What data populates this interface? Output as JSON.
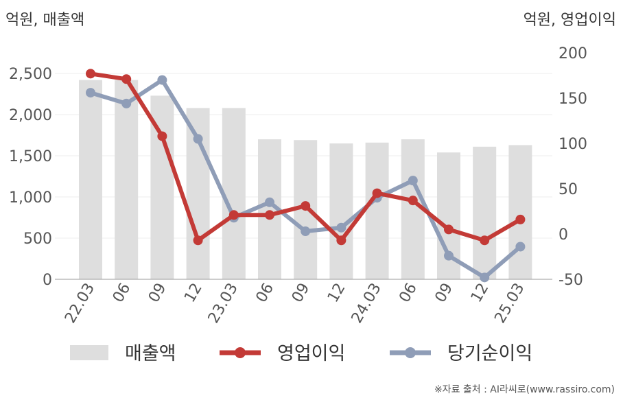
{
  "chart_data": {
    "type": "bar",
    "left_axis_title": "억원, 매출액",
    "right_axis_title": "억원, 영업이익",
    "categories": [
      "22.03",
      "06",
      "09",
      "12",
      "23.03",
      "06",
      "09",
      "12",
      "24.03",
      "06",
      "09",
      "12",
      "25.03"
    ],
    "y_left": {
      "min": 0,
      "max": 2500,
      "ticks": [
        "0",
        "500",
        "1,000",
        "1,500",
        "2,000",
        "2,500"
      ]
    },
    "y_right": {
      "min": -50,
      "max": 200,
      "ticks": [
        "-50",
        "0",
        "50",
        "100",
        "150",
        "200"
      ]
    },
    "series": [
      {
        "name": "매출액",
        "type": "bar",
        "axis": "left",
        "color": "#dedede",
        "values": [
          2420,
          2420,
          2230,
          2080,
          2080,
          1700,
          1690,
          1650,
          1660,
          1700,
          1540,
          1610,
          1630
        ]
      },
      {
        "name": "영업이익",
        "type": "line",
        "axis": "right",
        "color": "#c33a36",
        "values": [
          177,
          171,
          108,
          -7,
          21,
          21,
          31,
          -7,
          45,
          37,
          5,
          -7,
          16
        ]
      },
      {
        "name": "당기순이익",
        "type": "line",
        "axis": "right",
        "color": "#8f9db7",
        "values": [
          156,
          144,
          170,
          105,
          18,
          35,
          3,
          7,
          40,
          59,
          -24,
          -48,
          -14
        ]
      }
    ],
    "legend_position": "bottom",
    "grid": true
  },
  "source_note": "※자료 출처 : AI라씨로(www.rassiro.com)"
}
